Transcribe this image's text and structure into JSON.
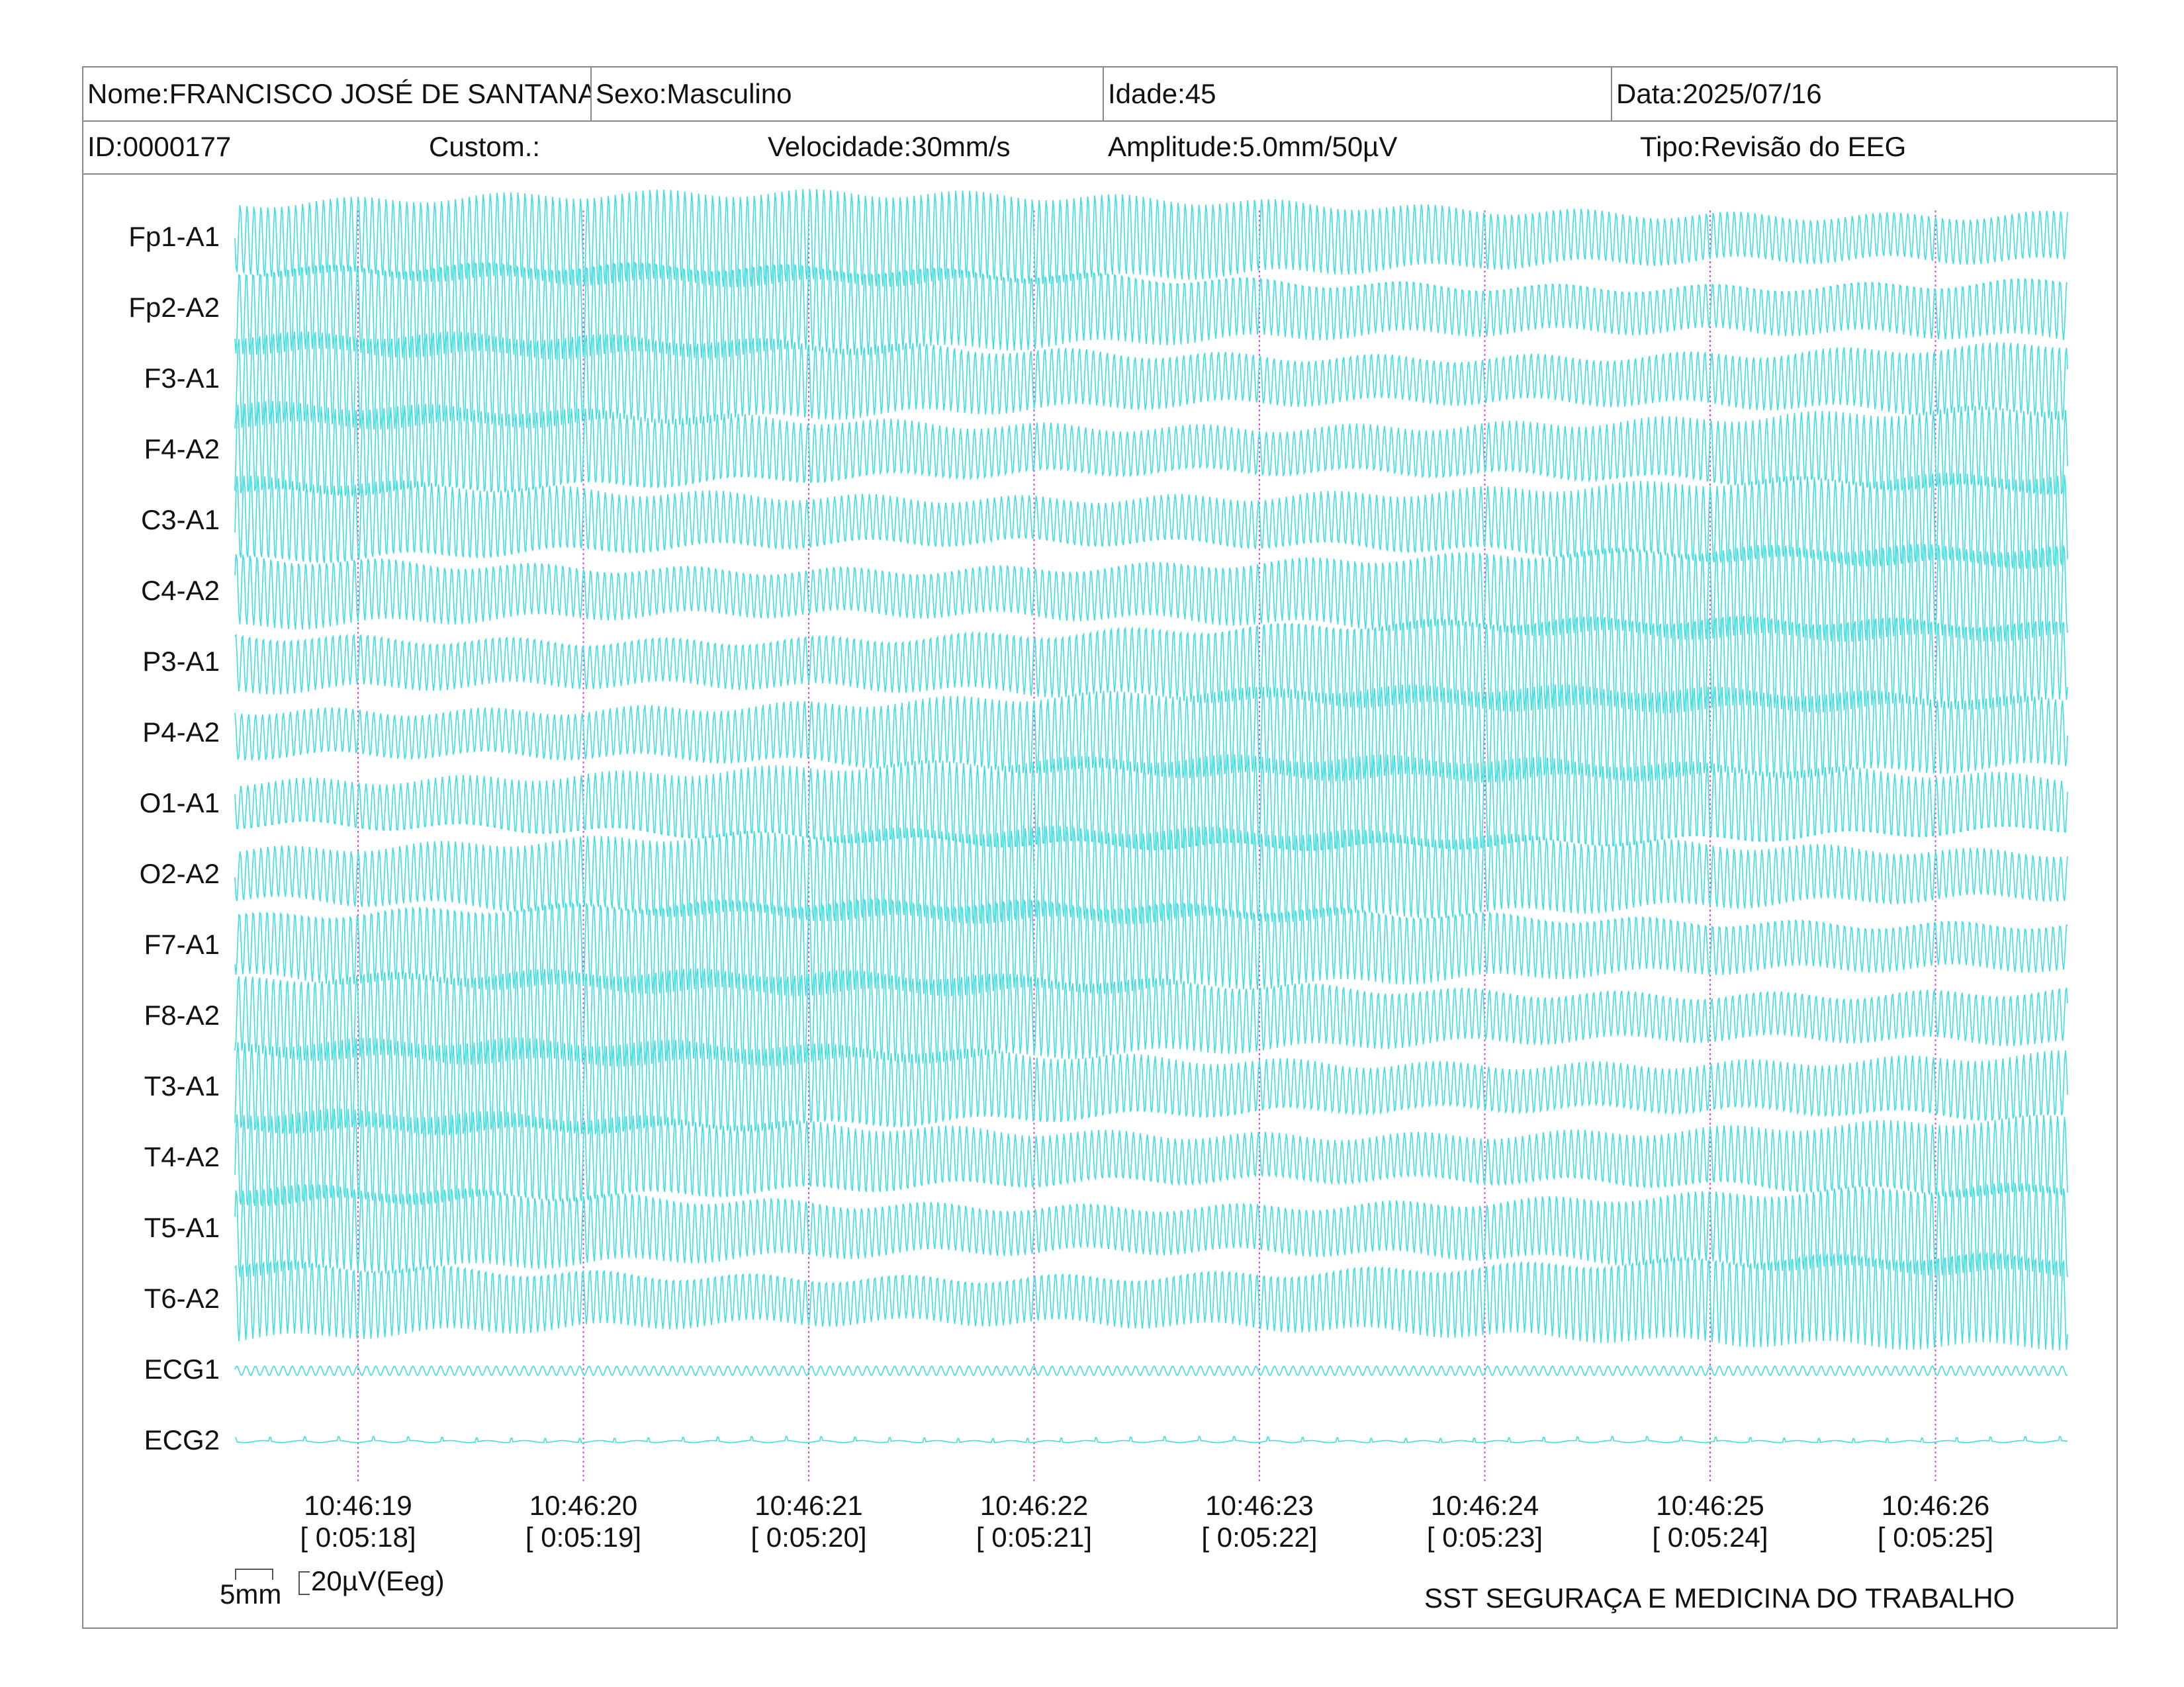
{
  "header": {
    "nome": "Nome:FRANCISCO JOSÉ DE SANTANA",
    "sexo": "Sexo:Masculino",
    "idade": "Idade:45",
    "data": "Data:2025/07/16",
    "id": "ID:0000177",
    "custom": "Custom.:",
    "velocidade": "Velocidade:30mm/s",
    "amplitude": "Amplitude:5.0mm/50µV",
    "tipo": "Tipo:Revisão do EEG"
  },
  "footer": {
    "scale_mm": "5mm",
    "scale_uv": "20µV(Eeg)",
    "company": "SST SEGURAÇA E MEDICINA DO TRABALHO"
  },
  "colors": {
    "trace": "#3fdede",
    "marker": "#d94fd9",
    "border": "#8a8a8a"
  },
  "chart_data": {
    "type": "line",
    "title": "",
    "xlabel": "",
    "ylabel": "",
    "grid": false,
    "channels": [
      "Fp1-A1",
      "Fp2-A2",
      "F3-A1",
      "F4-A2",
      "C3-A1",
      "C4-A2",
      "P3-A1",
      "P4-A2",
      "O1-A1",
      "O2-A2",
      "F7-A1",
      "F8-A2",
      "T3-A1",
      "T4-A2",
      "T5-A1",
      "T6-A2",
      "ECG1",
      "ECG2"
    ],
    "time_ticks": [
      {
        "clock": "10:46:19",
        "elapsed": "[ 0:05:18]"
      },
      {
        "clock": "10:46:20",
        "elapsed": "[ 0:05:19]"
      },
      {
        "clock": "10:46:21",
        "elapsed": "[ 0:05:20]"
      },
      {
        "clock": "10:46:22",
        "elapsed": "[ 0:05:21]"
      },
      {
        "clock": "10:46:23",
        "elapsed": "[ 0:05:22]"
      },
      {
        "clock": "10:46:24",
        "elapsed": "[ 0:05:23]"
      },
      {
        "clock": "10:46:25",
        "elapsed": "[ 0:05:24]"
      },
      {
        "clock": "10:46:26",
        "elapsed": "[ 0:05:25]"
      }
    ]
  }
}
